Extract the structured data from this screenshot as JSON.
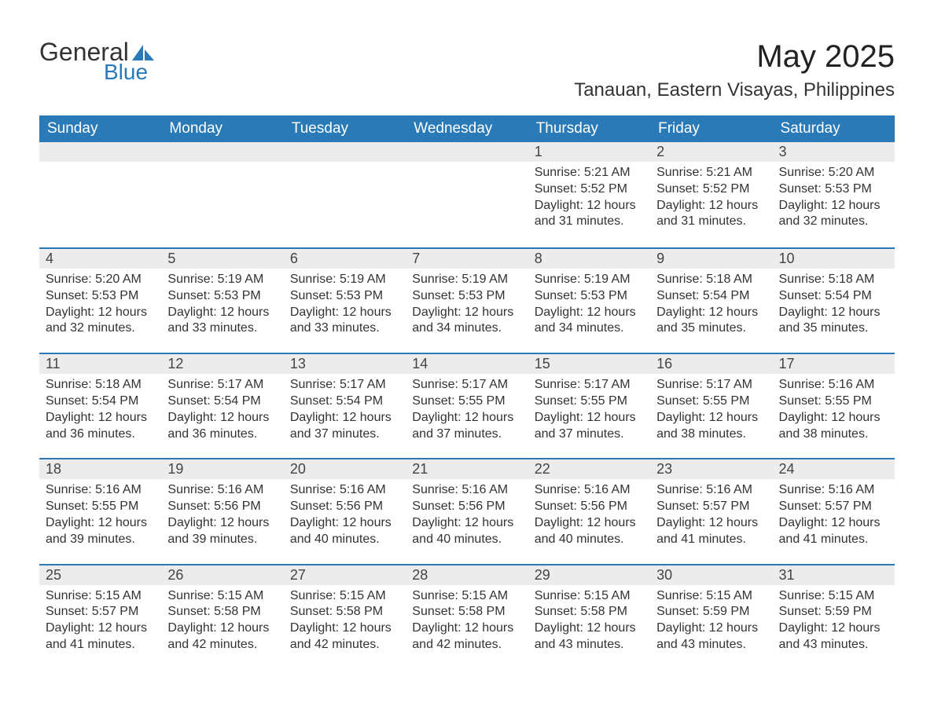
{
  "brand": {
    "name1": "General",
    "name2": "Blue",
    "text_color": "#333333",
    "accent_color": "#2a7ab8"
  },
  "title": "May 2025",
  "location": "Tanauan, Eastern Visayas, Philippines",
  "colors": {
    "header_bg": "#2a7ab8",
    "header_text": "#ffffff",
    "daynum_bg": "#ececec",
    "daynum_border": "#2a7ab8",
    "body_text": "#333333",
    "page_bg": "#ffffff"
  },
  "weekdays": [
    "Sunday",
    "Monday",
    "Tuesday",
    "Wednesday",
    "Thursday",
    "Friday",
    "Saturday"
  ],
  "weeks": [
    [
      null,
      null,
      null,
      null,
      {
        "day": "1",
        "sunrise": "Sunrise: 5:21 AM",
        "sunset": "Sunset: 5:52 PM",
        "daylight1": "Daylight: 12 hours",
        "daylight2": "and 31 minutes."
      },
      {
        "day": "2",
        "sunrise": "Sunrise: 5:21 AM",
        "sunset": "Sunset: 5:52 PM",
        "daylight1": "Daylight: 12 hours",
        "daylight2": "and 31 minutes."
      },
      {
        "day": "3",
        "sunrise": "Sunrise: 5:20 AM",
        "sunset": "Sunset: 5:53 PM",
        "daylight1": "Daylight: 12 hours",
        "daylight2": "and 32 minutes."
      }
    ],
    [
      {
        "day": "4",
        "sunrise": "Sunrise: 5:20 AM",
        "sunset": "Sunset: 5:53 PM",
        "daylight1": "Daylight: 12 hours",
        "daylight2": "and 32 minutes."
      },
      {
        "day": "5",
        "sunrise": "Sunrise: 5:19 AM",
        "sunset": "Sunset: 5:53 PM",
        "daylight1": "Daylight: 12 hours",
        "daylight2": "and 33 minutes."
      },
      {
        "day": "6",
        "sunrise": "Sunrise: 5:19 AM",
        "sunset": "Sunset: 5:53 PM",
        "daylight1": "Daylight: 12 hours",
        "daylight2": "and 33 minutes."
      },
      {
        "day": "7",
        "sunrise": "Sunrise: 5:19 AM",
        "sunset": "Sunset: 5:53 PM",
        "daylight1": "Daylight: 12 hours",
        "daylight2": "and 34 minutes."
      },
      {
        "day": "8",
        "sunrise": "Sunrise: 5:19 AM",
        "sunset": "Sunset: 5:53 PM",
        "daylight1": "Daylight: 12 hours",
        "daylight2": "and 34 minutes."
      },
      {
        "day": "9",
        "sunrise": "Sunrise: 5:18 AM",
        "sunset": "Sunset: 5:54 PM",
        "daylight1": "Daylight: 12 hours",
        "daylight2": "and 35 minutes."
      },
      {
        "day": "10",
        "sunrise": "Sunrise: 5:18 AM",
        "sunset": "Sunset: 5:54 PM",
        "daylight1": "Daylight: 12 hours",
        "daylight2": "and 35 minutes."
      }
    ],
    [
      {
        "day": "11",
        "sunrise": "Sunrise: 5:18 AM",
        "sunset": "Sunset: 5:54 PM",
        "daylight1": "Daylight: 12 hours",
        "daylight2": "and 36 minutes."
      },
      {
        "day": "12",
        "sunrise": "Sunrise: 5:17 AM",
        "sunset": "Sunset: 5:54 PM",
        "daylight1": "Daylight: 12 hours",
        "daylight2": "and 36 minutes."
      },
      {
        "day": "13",
        "sunrise": "Sunrise: 5:17 AM",
        "sunset": "Sunset: 5:54 PM",
        "daylight1": "Daylight: 12 hours",
        "daylight2": "and 37 minutes."
      },
      {
        "day": "14",
        "sunrise": "Sunrise: 5:17 AM",
        "sunset": "Sunset: 5:55 PM",
        "daylight1": "Daylight: 12 hours",
        "daylight2": "and 37 minutes."
      },
      {
        "day": "15",
        "sunrise": "Sunrise: 5:17 AM",
        "sunset": "Sunset: 5:55 PM",
        "daylight1": "Daylight: 12 hours",
        "daylight2": "and 37 minutes."
      },
      {
        "day": "16",
        "sunrise": "Sunrise: 5:17 AM",
        "sunset": "Sunset: 5:55 PM",
        "daylight1": "Daylight: 12 hours",
        "daylight2": "and 38 minutes."
      },
      {
        "day": "17",
        "sunrise": "Sunrise: 5:16 AM",
        "sunset": "Sunset: 5:55 PM",
        "daylight1": "Daylight: 12 hours",
        "daylight2": "and 38 minutes."
      }
    ],
    [
      {
        "day": "18",
        "sunrise": "Sunrise: 5:16 AM",
        "sunset": "Sunset: 5:55 PM",
        "daylight1": "Daylight: 12 hours",
        "daylight2": "and 39 minutes."
      },
      {
        "day": "19",
        "sunrise": "Sunrise: 5:16 AM",
        "sunset": "Sunset: 5:56 PM",
        "daylight1": "Daylight: 12 hours",
        "daylight2": "and 39 minutes."
      },
      {
        "day": "20",
        "sunrise": "Sunrise: 5:16 AM",
        "sunset": "Sunset: 5:56 PM",
        "daylight1": "Daylight: 12 hours",
        "daylight2": "and 40 minutes."
      },
      {
        "day": "21",
        "sunrise": "Sunrise: 5:16 AM",
        "sunset": "Sunset: 5:56 PM",
        "daylight1": "Daylight: 12 hours",
        "daylight2": "and 40 minutes."
      },
      {
        "day": "22",
        "sunrise": "Sunrise: 5:16 AM",
        "sunset": "Sunset: 5:56 PM",
        "daylight1": "Daylight: 12 hours",
        "daylight2": "and 40 minutes."
      },
      {
        "day": "23",
        "sunrise": "Sunrise: 5:16 AM",
        "sunset": "Sunset: 5:57 PM",
        "daylight1": "Daylight: 12 hours",
        "daylight2": "and 41 minutes."
      },
      {
        "day": "24",
        "sunrise": "Sunrise: 5:16 AM",
        "sunset": "Sunset: 5:57 PM",
        "daylight1": "Daylight: 12 hours",
        "daylight2": "and 41 minutes."
      }
    ],
    [
      {
        "day": "25",
        "sunrise": "Sunrise: 5:15 AM",
        "sunset": "Sunset: 5:57 PM",
        "daylight1": "Daylight: 12 hours",
        "daylight2": "and 41 minutes."
      },
      {
        "day": "26",
        "sunrise": "Sunrise: 5:15 AM",
        "sunset": "Sunset: 5:58 PM",
        "daylight1": "Daylight: 12 hours",
        "daylight2": "and 42 minutes."
      },
      {
        "day": "27",
        "sunrise": "Sunrise: 5:15 AM",
        "sunset": "Sunset: 5:58 PM",
        "daylight1": "Daylight: 12 hours",
        "daylight2": "and 42 minutes."
      },
      {
        "day": "28",
        "sunrise": "Sunrise: 5:15 AM",
        "sunset": "Sunset: 5:58 PM",
        "daylight1": "Daylight: 12 hours",
        "daylight2": "and 42 minutes."
      },
      {
        "day": "29",
        "sunrise": "Sunrise: 5:15 AM",
        "sunset": "Sunset: 5:58 PM",
        "daylight1": "Daylight: 12 hours",
        "daylight2": "and 43 minutes."
      },
      {
        "day": "30",
        "sunrise": "Sunrise: 5:15 AM",
        "sunset": "Sunset: 5:59 PM",
        "daylight1": "Daylight: 12 hours",
        "daylight2": "and 43 minutes."
      },
      {
        "day": "31",
        "sunrise": "Sunrise: 5:15 AM",
        "sunset": "Sunset: 5:59 PM",
        "daylight1": "Daylight: 12 hours",
        "daylight2": "and 43 minutes."
      }
    ]
  ]
}
